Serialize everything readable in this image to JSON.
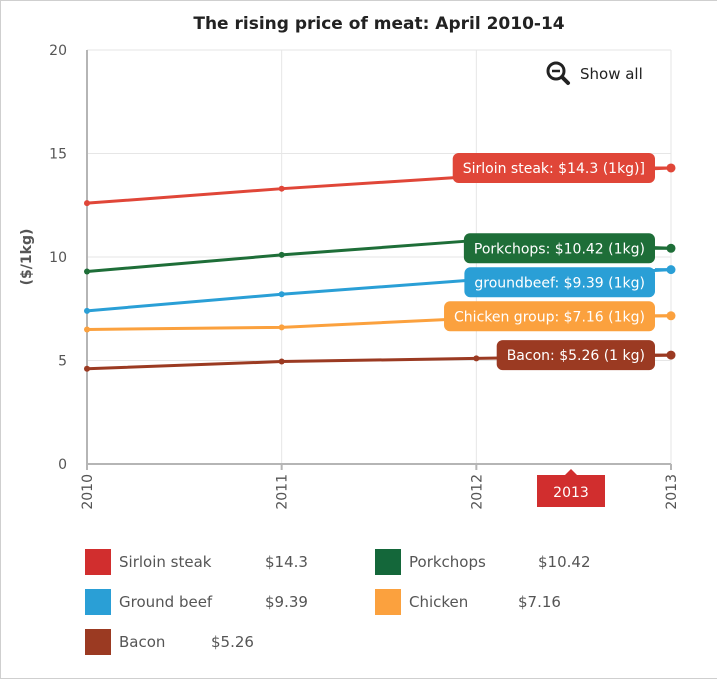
{
  "chart_data": {
    "type": "line",
    "title": "The rising price of meat: April 2010-14",
    "ylabel": "($/1kg)",
    "xlabel": "",
    "x": [
      "2010",
      "2011",
      "2012",
      "2013"
    ],
    "y_ticks": [
      "0",
      "5",
      "10",
      "15",
      "20"
    ],
    "ylim": [
      0,
      20
    ],
    "grid": true,
    "legend_position": "bottom",
    "series": [
      {
        "name": "Sirloin steak",
        "color": "#e04638",
        "legend_color": "#d12e2e",
        "values": [
          12.6,
          13.3,
          13.9,
          14.3
        ],
        "tooltip": "Sirloin steak: $14.3 (1kg)]",
        "legend_name": "Sirloin steak",
        "legend_value": "$14.3"
      },
      {
        "name": "Porkchops",
        "color": "#1e6e38",
        "legend_color": "#14673a",
        "values": [
          9.3,
          10.1,
          10.8,
          10.42
        ],
        "tooltip": "Porkchops: $10.42 (1kg)",
        "legend_name": "Porkchops",
        "legend_value": "$10.42"
      },
      {
        "name": "Ground beef",
        "color": "#2a9fd6",
        "legend_color": "#2a9fd6",
        "values": [
          7.4,
          8.2,
          8.9,
          9.39
        ],
        "tooltip": "groundbeef: $9.39 (1kg)",
        "legend_name": "Ground beef",
        "legend_value": "$9.39"
      },
      {
        "name": "Chicken",
        "color": "#fba13e",
        "legend_color": "#fba13e",
        "values": [
          6.5,
          6.6,
          7.05,
          7.16
        ],
        "tooltip": "Chicken group: $7.16 (1kg)",
        "legend_name": "Chicken",
        "legend_value": "$7.16"
      },
      {
        "name": "Bacon",
        "color": "#9b3a22",
        "legend_color": "#9b3a22",
        "values": [
          4.6,
          4.95,
          5.1,
          5.26
        ],
        "tooltip": "Bacon: $5.26 (1 kg)",
        "legend_name": "Bacon",
        "legend_value": "$5.26"
      }
    ],
    "crosshair_label": "2013",
    "crosshair_color": "#d12e2e"
  },
  "toolbar": {
    "show_all_label": "Show all",
    "zoom_icon": "zoom-out-icon"
  }
}
